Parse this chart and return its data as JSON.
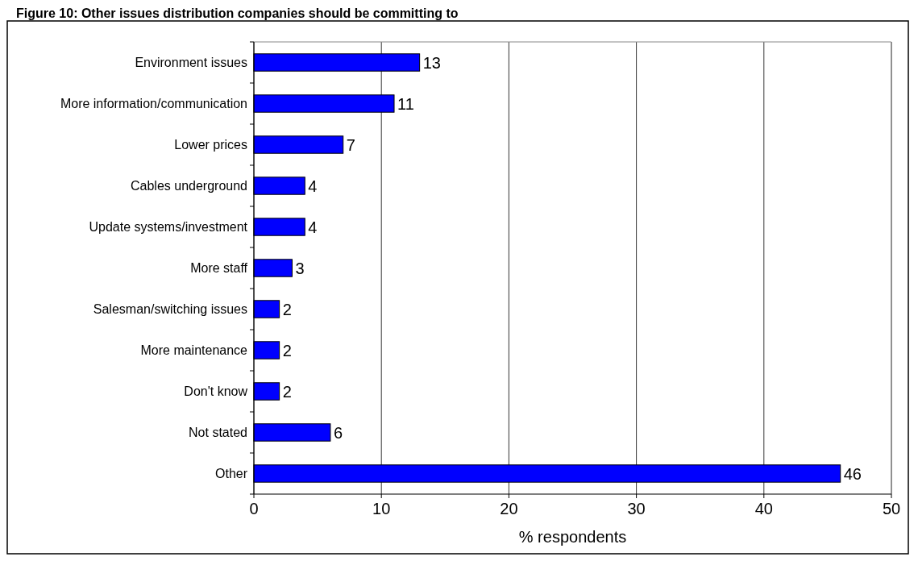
{
  "chart_data": {
    "type": "bar",
    "orientation": "horizontal",
    "title": "Figure 10: Other issues distribution companies should be committing to",
    "categories": [
      "Environment issues",
      "More information/communication",
      "Lower prices",
      "Cables underground",
      "Update systems/investment",
      "More staff",
      "Salesman/switching issues",
      "More maintenance",
      "Don't know",
      "Not stated",
      "Other"
    ],
    "values": [
      13,
      11,
      7,
      4,
      4,
      3,
      2,
      2,
      2,
      6,
      46
    ],
    "color": "#0000ff",
    "xlim": [
      0,
      50
    ],
    "xticks": [
      0,
      10,
      20,
      30,
      40,
      50
    ],
    "xlabel": "% respondents",
    "grid": "x",
    "data_labels": true
  }
}
